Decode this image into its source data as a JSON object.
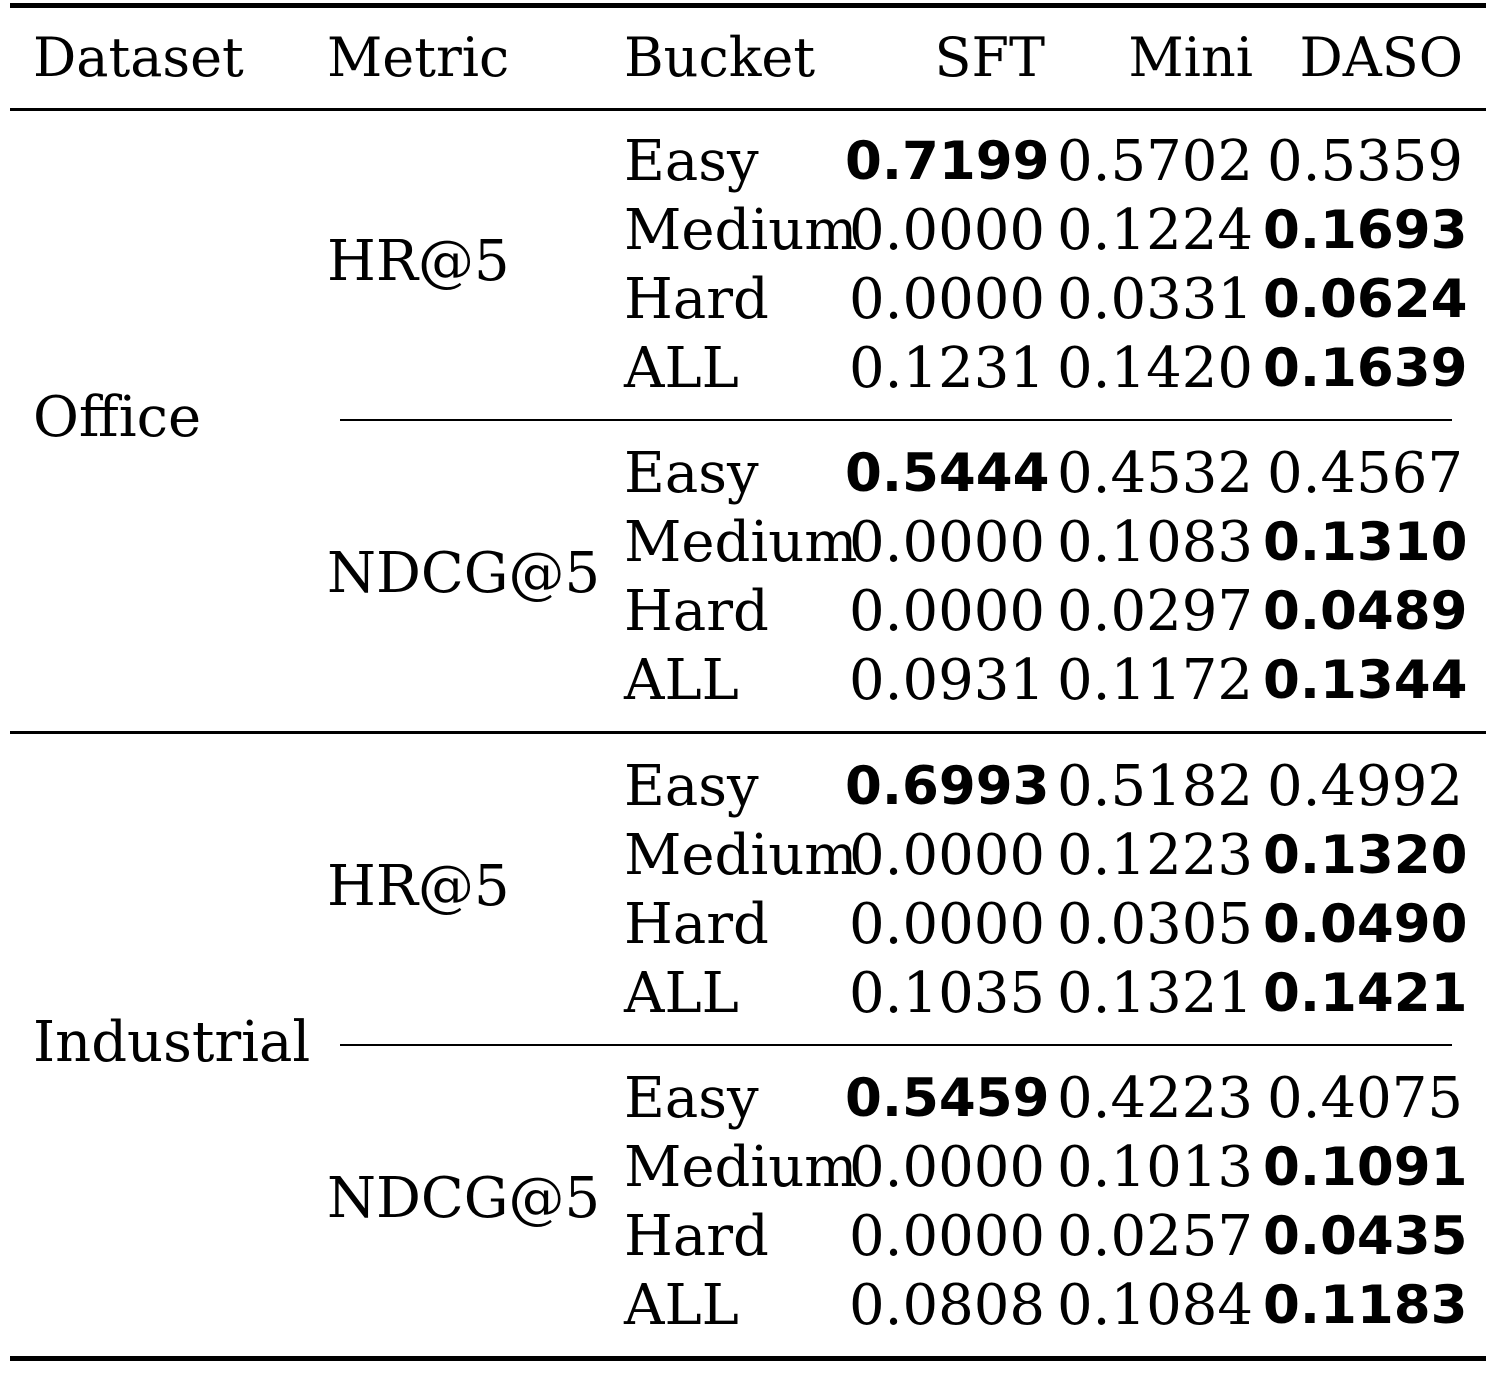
{
  "columns": [
    "Dataset",
    "Metric",
    "Bucket",
    "SFT",
    "Mini",
    "DASO"
  ],
  "groups": [
    {
      "dataset": "Office",
      "metrics": [
        {
          "metric": "HR@5",
          "rows": [
            {
              "bucket": "Easy",
              "values": [
                "0.7199",
                "0.5702",
                "0.5359"
              ],
              "bold": [
                true,
                false,
                false
              ]
            },
            {
              "bucket": "Medium",
              "values": [
                "0.0000",
                "0.1224",
                "0.1693"
              ],
              "bold": [
                false,
                false,
                true
              ]
            },
            {
              "bucket": "Hard",
              "values": [
                "0.0000",
                "0.0331",
                "0.0624"
              ],
              "bold": [
                false,
                false,
                true
              ]
            },
            {
              "bucket": "ALL",
              "values": [
                "0.1231",
                "0.1420",
                "0.1639"
              ],
              "bold": [
                false,
                false,
                true
              ]
            }
          ]
        },
        {
          "metric": "NDCG@5",
          "rows": [
            {
              "bucket": "Easy",
              "values": [
                "0.5444",
                "0.4532",
                "0.4567"
              ],
              "bold": [
                true,
                false,
                false
              ]
            },
            {
              "bucket": "Medium",
              "values": [
                "0.0000",
                "0.1083",
                "0.1310"
              ],
              "bold": [
                false,
                false,
                true
              ]
            },
            {
              "bucket": "Hard",
              "values": [
                "0.0000",
                "0.0297",
                "0.0489"
              ],
              "bold": [
                false,
                false,
                true
              ]
            },
            {
              "bucket": "ALL",
              "values": [
                "0.0931",
                "0.1172",
                "0.1344"
              ],
              "bold": [
                false,
                false,
                true
              ]
            }
          ]
        }
      ]
    },
    {
      "dataset": "Industrial",
      "metrics": [
        {
          "metric": "HR@5",
          "rows": [
            {
              "bucket": "Easy",
              "values": [
                "0.6993",
                "0.5182",
                "0.4992"
              ],
              "bold": [
                true,
                false,
                false
              ]
            },
            {
              "bucket": "Medium",
              "values": [
                "0.0000",
                "0.1223",
                "0.1320"
              ],
              "bold": [
                false,
                false,
                true
              ]
            },
            {
              "bucket": "Hard",
              "values": [
                "0.0000",
                "0.0305",
                "0.0490"
              ],
              "bold": [
                false,
                false,
                true
              ]
            },
            {
              "bucket": "ALL",
              "values": [
                "0.1035",
                "0.1321",
                "0.1421"
              ],
              "bold": [
                false,
                false,
                true
              ]
            }
          ]
        },
        {
          "metric": "NDCG@5",
          "rows": [
            {
              "bucket": "Easy",
              "values": [
                "0.5459",
                "0.4223",
                "0.4075"
              ],
              "bold": [
                true,
                false,
                false
              ]
            },
            {
              "bucket": "Medium",
              "values": [
                "0.0000",
                "0.1013",
                "0.1091"
              ],
              "bold": [
                false,
                false,
                true
              ]
            },
            {
              "bucket": "Hard",
              "values": [
                "0.0000",
                "0.0257",
                "0.0435"
              ],
              "bold": [
                false,
                false,
                true
              ]
            },
            {
              "bucket": "ALL",
              "values": [
                "0.0808",
                "0.1084",
                "0.1183"
              ],
              "bold": [
                false,
                false,
                true
              ]
            }
          ]
        }
      ]
    }
  ]
}
